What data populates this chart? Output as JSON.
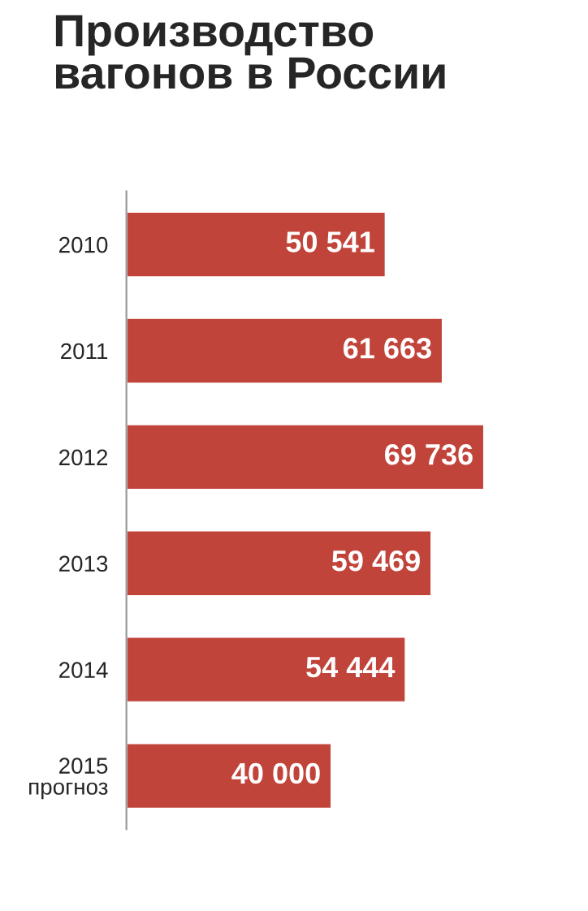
{
  "chart_data": {
    "type": "bar",
    "orientation": "horizontal",
    "title": "Производство\nвагонов в России",
    "categories": [
      "2010",
      "2011",
      "2012",
      "2013",
      "2014",
      "2015\nпрогноз"
    ],
    "values": [
      50541,
      61663,
      69736,
      59469,
      54444,
      40000
    ],
    "value_labels": [
      "50 541",
      "61 663",
      "69 736",
      "59 469",
      "54 444",
      "40 000"
    ],
    "color": "#c1443b",
    "grid": false,
    "legend": false
  }
}
